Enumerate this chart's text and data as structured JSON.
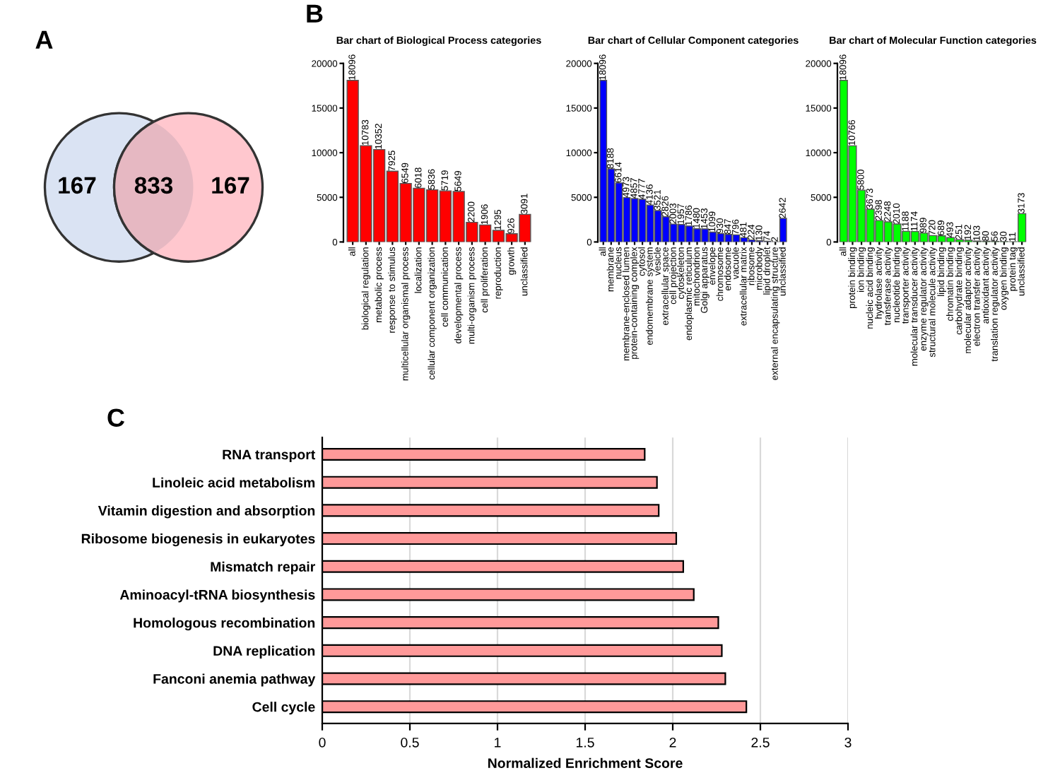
{
  "chart_data": [
    {
      "type": "other",
      "annotations": [
        "A"
      ],
      "categories": [
        null,
        null,
        null
      ],
      "values": [
        167,
        833,
        167
      ],
      "data_labels": true,
      "colors": [
        "#dae3f3",
        "#e6b8c2",
        "#ffc7ce"
      ]
    },
    {
      "type": "bar",
      "title": "Bar chart of Biological Process categories",
      "annotations": [
        "B"
      ],
      "categories": [
        "all",
        "biological regulation",
        "metabolic process",
        "response to stimulus",
        "multicellular organismal process",
        "localization",
        "cellular component organization",
        "cell communication",
        "developmental process",
        "multi-organism process",
        "cell proliferation",
        "reproduction",
        "growth",
        "unclassified"
      ],
      "values": [
        18096,
        10783,
        10352,
        7925,
        6549,
        6018,
        5836,
        5719,
        5649,
        2200,
        1906,
        1295,
        926,
        3091
      ],
      "color": "#ff0000",
      "ylim": [
        0,
        20000
      ],
      "yticks": [
        0,
        5000,
        10000,
        15000,
        20000
      ],
      "data_labels": true
    },
    {
      "type": "bar",
      "title": "Bar chart of Cellular Component categories",
      "categories": [
        "all",
        "membrane",
        "nucleus",
        "membrane-enclosed lumen",
        "protein-containing complex",
        "cytosol",
        "endomembrane system",
        "vesicle",
        "extracellular space",
        "cell projection",
        "cytoskeleton",
        "endoplasmic reticulum",
        "mitochondrion",
        "Golgi apparatus",
        "envelope",
        "chromosome",
        "endosome",
        "vacuole",
        "extracellular matrix",
        "ribosome",
        "microbody",
        "lipid droplet",
        "external encapsulating structure",
        "unclassified"
      ],
      "values": [
        18096,
        8188,
        6614,
        4973,
        4857,
        4777,
        4136,
        3521,
        2826,
        2003,
        1957,
        1786,
        1480,
        1453,
        1099,
        930,
        847,
        796,
        481,
        224,
        130,
        74,
        2,
        2642
      ],
      "color": "#0000ff",
      "ylim": [
        0,
        20000
      ],
      "yticks": [
        0,
        5000,
        10000,
        15000,
        20000
      ],
      "data_labels": true
    },
    {
      "type": "bar",
      "title": "Bar chart of Molecular Function categories",
      "categories": [
        "all",
        "protein binding",
        "ion binding",
        "nucleic acid binding",
        "hydrolase activity",
        "transferase activity",
        "nucleotide binding",
        "transporter activity",
        "molecular transducer activity",
        "enzyme regulator activity",
        "structural molecule activity",
        "lipid binding",
        "chromatin binding",
        "carbohydrate binding",
        "molecular adaptor activity",
        "electron transfer activity",
        "antioxidant activity",
        "translation regulator activity",
        "oxygen binding",
        "protein tag",
        "unclassified"
      ],
      "values": [
        18096,
        10766,
        5800,
        3673,
        2398,
        2248,
        2010,
        1188,
        1174,
        989,
        720,
        689,
        493,
        251,
        192,
        103,
        80,
        56,
        30,
        11,
        3173
      ],
      "color": "#00ff00",
      "ylim": [
        0,
        20000
      ],
      "yticks": [
        0,
        5000,
        10000,
        15000,
        20000
      ],
      "data_labels": true
    },
    {
      "type": "bar",
      "orientation": "horizontal",
      "annotations": [
        "C"
      ],
      "xlabel": "Normalized Enrichment Score",
      "categories": [
        "RNA transport",
        "Linoleic acid metabolism",
        "Vitamin digestion and absorption",
        "Ribosome biogenesis in eukaryotes",
        "Mismatch repair",
        "Aminoacyl-tRNA biosynthesis",
        "Homologous recombination",
        "DNA replication",
        "Fanconi anemia pathway",
        "Cell cycle"
      ],
      "values": [
        1.84,
        1.91,
        1.92,
        2.02,
        2.06,
        2.12,
        2.26,
        2.28,
        2.3,
        2.42
      ],
      "color": "#ff9999",
      "xlim": [
        0,
        3
      ],
      "xticks": [
        0,
        0.5,
        1,
        1.5,
        2,
        2.5,
        3
      ],
      "grid": "x"
    }
  ]
}
